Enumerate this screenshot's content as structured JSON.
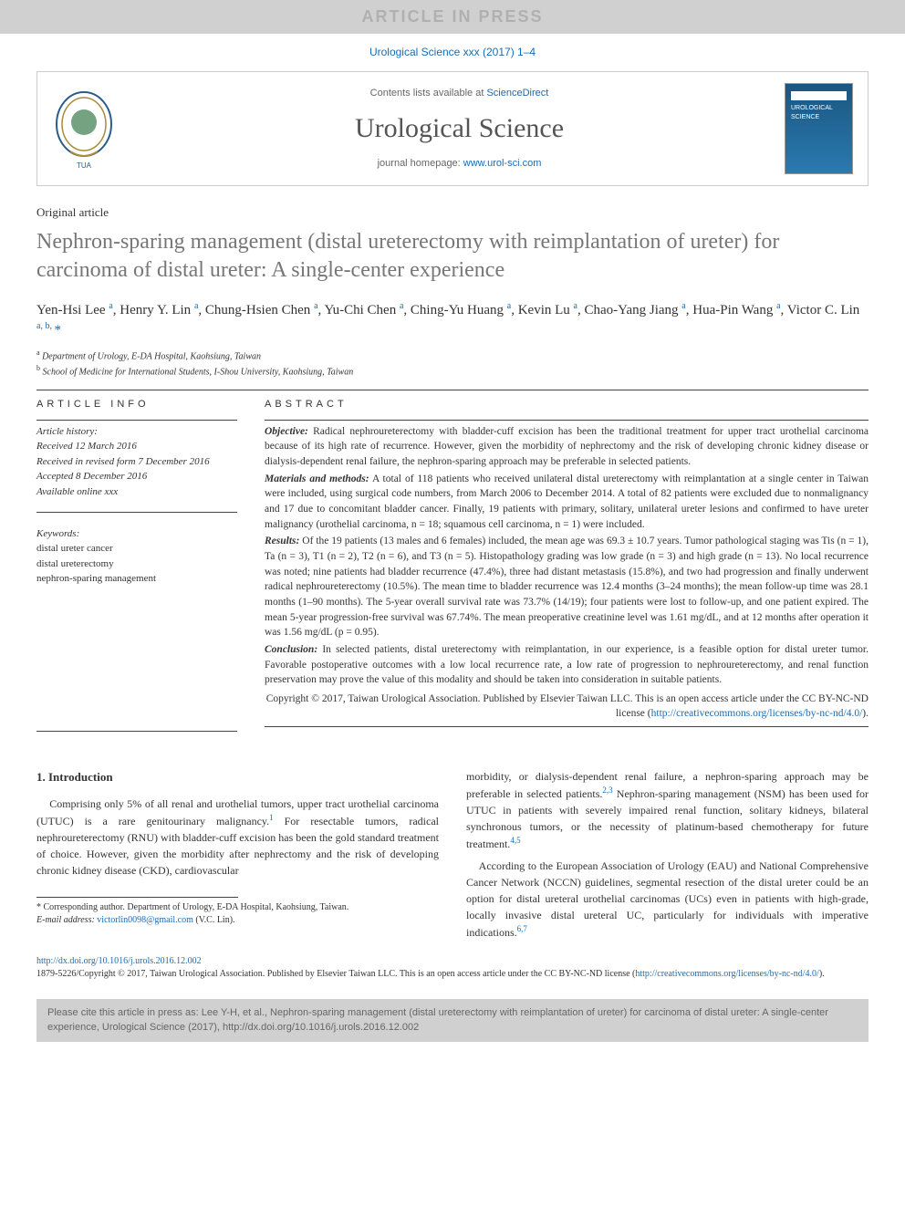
{
  "press_banner": "ARTICLE IN PRESS",
  "journal_ref": "Urological Science xxx (2017) 1–4",
  "header": {
    "contents_prefix": "Contents lists available at ",
    "contents_link": "ScienceDirect",
    "journal_name": "Urological Science",
    "homepage_prefix": "journal homepage: ",
    "homepage_link": "www.urol-sci.com",
    "cover_label": "UROLOGICAL SCIENCE"
  },
  "article_type": "Original article",
  "title": "Nephron-sparing management (distal ureterectomy with reimplantation of ureter) for carcinoma of distal ureter: A single-center experience",
  "authors_html": "Yen-Hsi Lee <sup class='sup'>a</sup>, Henry Y. Lin <sup class='sup'>a</sup>, Chung-Hsien Chen <sup class='sup'>a</sup>, Yu-Chi Chen <sup class='sup'>a</sup>, Ching-Yu Huang <sup class='sup'>a</sup>, Kevin Lu <sup class='sup'>a</sup>, Chao-Yang Jiang <sup class='sup'>a</sup>, Hua-Pin Wang <sup class='sup'>a</sup>, Victor C. Lin <sup class='sup'>a, b, </sup><span class='ast'>*</span>",
  "affiliations": [
    {
      "sup": "a",
      "text": "Department of Urology, E-DA Hospital, Kaohsiung, Taiwan"
    },
    {
      "sup": "b",
      "text": "School of Medicine for International Students, I-Shou University, Kaohsiung, Taiwan"
    }
  ],
  "info_head": "ARTICLE INFO",
  "abstract_head": "ABSTRACT",
  "history": {
    "label": "Article history:",
    "received": "Received 12 March 2016",
    "revised": "Received in revised form 7 December 2016",
    "accepted": "Accepted 8 December 2016",
    "online": "Available online xxx"
  },
  "keywords_label": "Keywords:",
  "keywords": [
    "distal ureter cancer",
    "distal ureterectomy",
    "nephron-sparing management"
  ],
  "abstract": {
    "objective_head": "Objective:",
    "objective": "Radical nephroureterectomy with bladder-cuff excision has been the traditional treatment for upper tract urothelial carcinoma because of its high rate of recurrence. However, given the morbidity of nephrectomy and the risk of developing chronic kidney disease or dialysis-dependent renal failure, the nephron-sparing approach may be preferable in selected patients.",
    "methods_head": "Materials and methods:",
    "methods": "A total of 118 patients who received unilateral distal ureterectomy with reimplantation at a single center in Taiwan were included, using surgical code numbers, from March 2006 to December 2014. A total of 82 patients were excluded due to nonmalignancy and 17 due to concomitant bladder cancer. Finally, 19 patients with primary, solitary, unilateral ureter lesions and confirmed to have ureter malignancy (urothelial carcinoma, n = 18; squamous cell carcinoma, n = 1) were included.",
    "results_head": "Results:",
    "results": "Of the 19 patients (13 males and 6 females) included, the mean age was 69.3 ± 10.7 years. Tumor pathological staging was Tis (n = 1), Ta (n = 3), T1 (n = 2), T2 (n = 6), and T3 (n = 5). Histopathology grading was low grade (n = 3) and high grade (n = 13). No local recurrence was noted; nine patients had bladder recurrence (47.4%), three had distant metastasis (15.8%), and two had progression and finally underwent radical nephroureterectomy (10.5%). The mean time to bladder recurrence was 12.4 months (3–24 months); the mean follow-up time was 28.1 months (1–90 months). The 5-year overall survival rate was 73.7% (14/19); four patients were lost to follow-up, and one patient expired. The mean 5-year progression-free survival was 67.74%. The mean preoperative creatinine level was 1.61 mg/dL, and at 12 months after operation it was 1.56 mg/dL (p = 0.95).",
    "conclusion_head": "Conclusion:",
    "conclusion": "In selected patients, distal ureterectomy with reimplantation, in our experience, is a feasible option for distal ureter tumor. Favorable postoperative outcomes with a low local recurrence rate, a low rate of progression to nephroureterectomy, and renal function preservation may prove the value of this modality and should be taken into consideration in suitable patients."
  },
  "copyright_text": "Copyright © 2017, Taiwan Urological Association. Published by Elsevier Taiwan LLC. This is an open access article under the CC BY-NC-ND license (",
  "copyright_link": "http://creativecommons.org/licenses/by-nc-nd/4.0/",
  "copyright_suffix": ").",
  "intro_head": "1. Introduction",
  "intro_p1_a": "Comprising only 5% of all renal and urothelial tumors, upper tract urothelial carcinoma (UTUC) is a rare genitourinary malignancy.",
  "intro_p1_cite1": "1",
  "intro_p1_b": " For resectable tumors, radical nephroureterectomy (RNU) with bladder-cuff excision has been the gold standard treatment of choice. However, given the morbidity after nephrectomy and the risk of developing chronic kidney disease (CKD), cardiovascular",
  "intro_p2_a": "morbidity, or dialysis-dependent renal failure, a nephron-sparing approach may be preferable in selected patients.",
  "intro_p2_cite1": "2,3",
  "intro_p2_b": " Nephron-sparing management (NSM) has been used for UTUC in patients with severely impaired renal function, solitary kidneys, bilateral synchronous tumors, or the necessity of platinum-based chemotherapy for future treatment.",
  "intro_p2_cite2": "4,5",
  "intro_p3_a": "According to the European Association of Urology (EAU) and National Comprehensive Cancer Network (NCCN) guidelines, segmental resection of the distal ureter could be an option for distal ureteral urothelial carcinomas (UCs) even in patients with high-grade, locally invasive distal ureteral UC, particularly for individuals with imperative indications.",
  "intro_p3_cite1": "6,7",
  "footnote_corr": "* Corresponding author. Department of Urology, E-DA Hospital, Kaohsiung, Taiwan.",
  "footnote_email_label": "E-mail address:",
  "footnote_email": "victorlin0098@gmail.com",
  "footnote_email_suffix": " (V.C. Lin).",
  "doi": "http://dx.doi.org/10.1016/j.urols.2016.12.002",
  "issn_line_a": "1879-5226/Copyright © 2017, Taiwan Urological Association. Published by Elsevier Taiwan LLC. This is an open access article under the CC BY-NC-ND license (",
  "issn_link": "http://creativecommons.org/licenses/by-nc-nd/4.0/",
  "issn_line_b": ").",
  "cite_box": "Please cite this article in press as: Lee Y-H, et al., Nephron-sparing management (distal ureterectomy with reimplantation of ureter) for carcinoma of distal ureter: A single-center experience, Urological Science (2017), http://dx.doi.org/10.1016/j.urols.2016.12.002",
  "colors": {
    "link": "#1a6bb3",
    "banner_bg": "#d0d0d0",
    "banner_fg": "#b0b0b0",
    "title_color": "#777",
    "cover_grad_top": "#1a5680",
    "cover_grad_bot": "#2a7ab0"
  }
}
